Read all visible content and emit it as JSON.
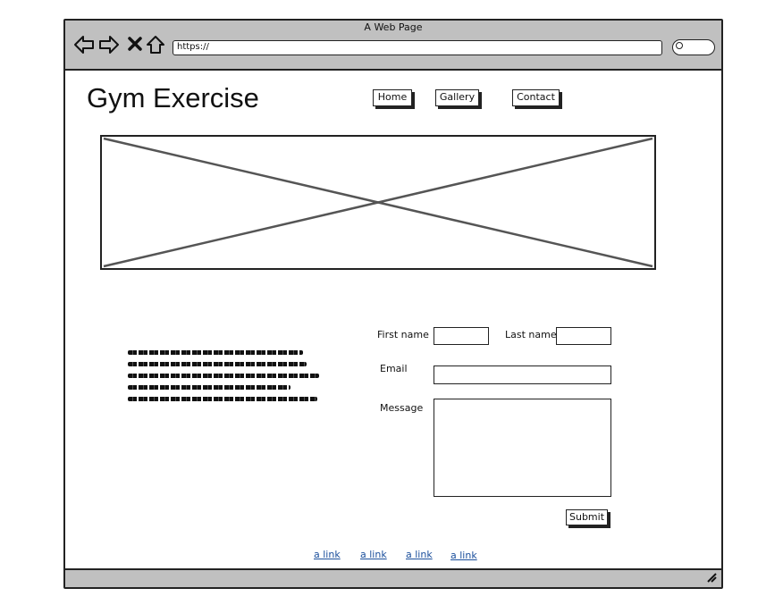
{
  "window": {
    "title": "A Web Page"
  },
  "browser": {
    "url": "https://",
    "icons": {
      "back": "back-arrow-icon",
      "forward": "forward-arrow-icon",
      "stop": "stop-icon",
      "home": "home-icon",
      "search": "search-icon",
      "resize": "resize-grip-icon"
    }
  },
  "site": {
    "title": "Gym Exercise"
  },
  "nav": {
    "items": [
      {
        "label": "Home"
      },
      {
        "label": "Gallery"
      },
      {
        "label": "Contact"
      }
    ]
  },
  "hero": {
    "type": "image-placeholder"
  },
  "form": {
    "first_name_label": "First name",
    "last_name_label": "Last name",
    "email_label": "Email",
    "message_label": "Message",
    "first_name_value": "",
    "last_name_value": "",
    "email_value": "",
    "message_value": "",
    "submit_label": "Submit"
  },
  "footer": {
    "links": [
      {
        "label": "a link"
      },
      {
        "label": "a link"
      },
      {
        "label": "a link"
      },
      {
        "label": "a link"
      }
    ]
  }
}
